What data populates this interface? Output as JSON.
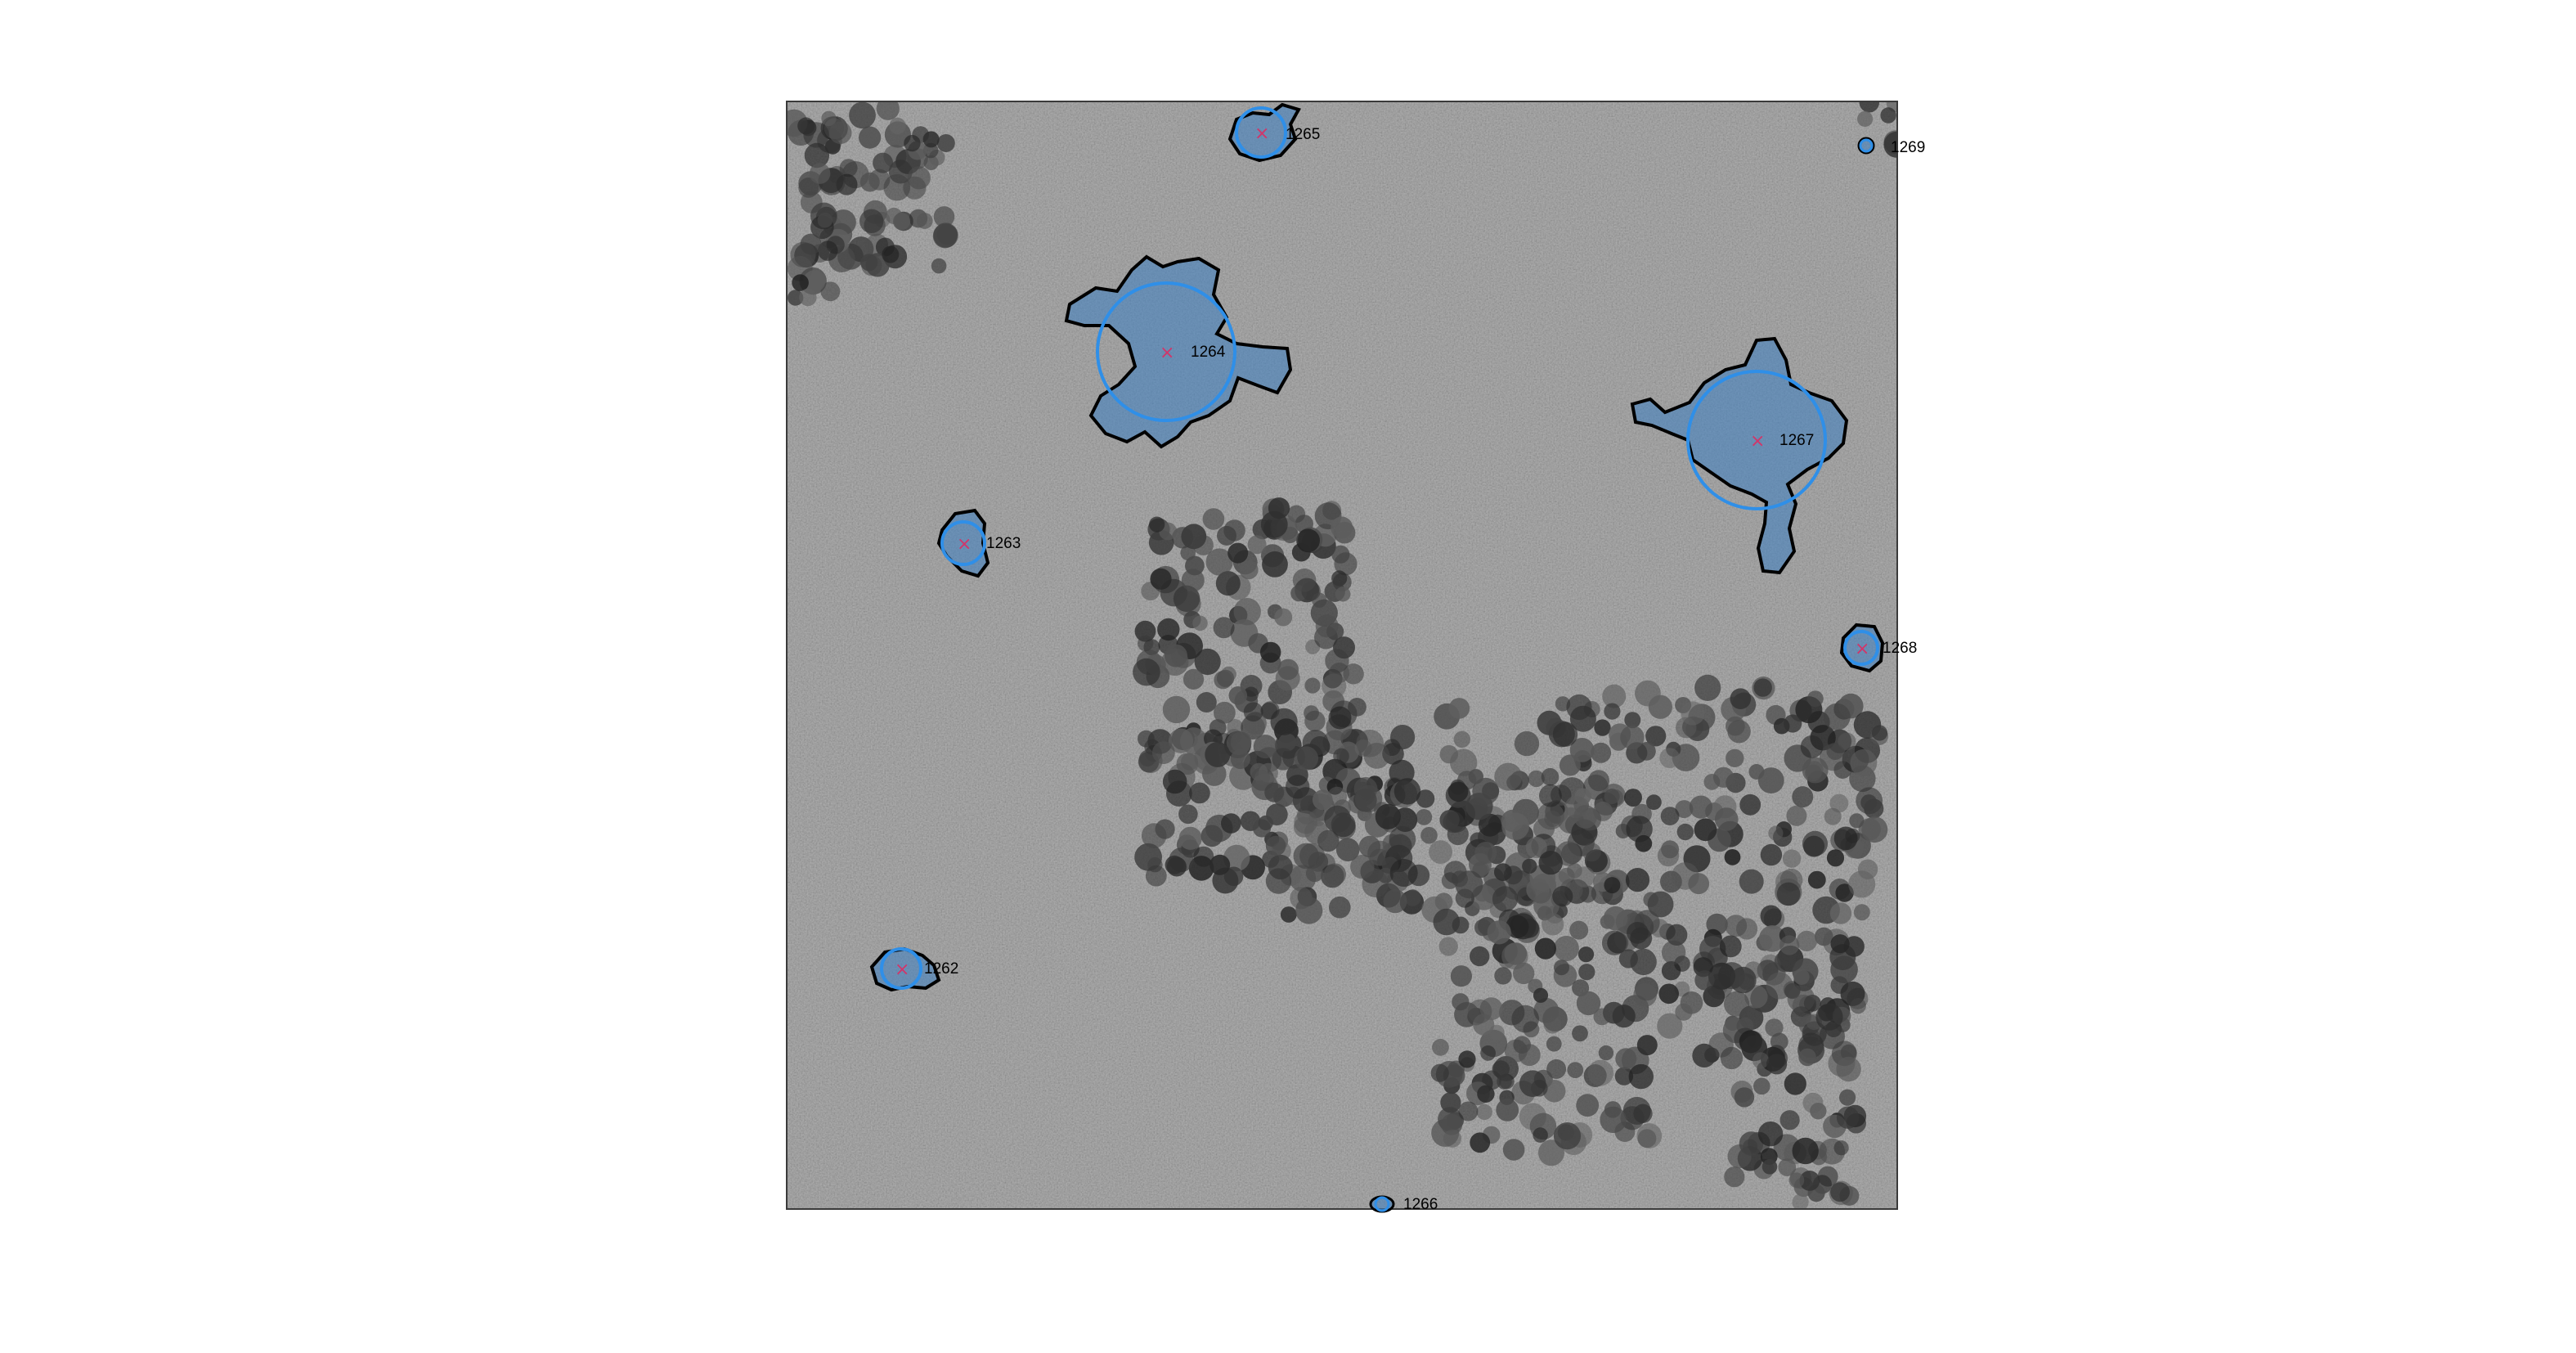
{
  "image": {
    "kind": "TEM micrograph with segmented soot aggregates",
    "colors": {
      "background": "#ffffff",
      "micrograph_base": "#8f8f8f",
      "particle_dark": "#2e2e2e",
      "overlay_fill": "#3d7fc2",
      "outline": "#000000",
      "circle": "#2f8fe8",
      "center_marker": "#d0366a"
    }
  },
  "aggregates": [
    {
      "id": "1262",
      "label": "1262"
    },
    {
      "id": "1263",
      "label": "1263"
    },
    {
      "id": "1264",
      "label": "1264"
    },
    {
      "id": "1265",
      "label": "1265"
    },
    {
      "id": "1266",
      "label": "1266"
    },
    {
      "id": "1267",
      "label": "1267"
    },
    {
      "id": "1268",
      "label": "1268"
    },
    {
      "id": "1269",
      "label": "1269"
    }
  ]
}
